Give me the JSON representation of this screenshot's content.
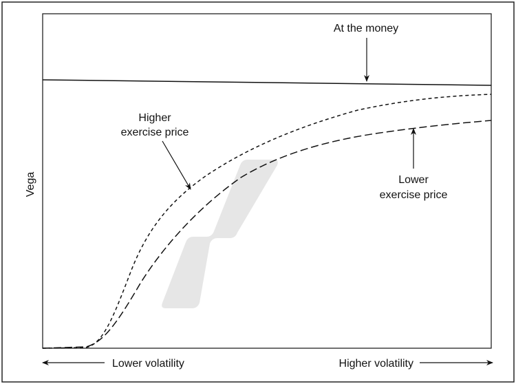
{
  "diagram": {
    "y_axis_label": "Vega",
    "x_axis_left_label": "Lower volatility",
    "x_axis_right_label": "Higher volatility",
    "curves": [
      {
        "label": "At the money",
        "style": "solid"
      },
      {
        "label_line1": "Higher",
        "label_line2": "exercise price",
        "style": "short-dash"
      },
      {
        "label_line1": "Lower",
        "label_line2": "exercise price",
        "style": "long-dash"
      }
    ],
    "colors": {
      "line": "#111111",
      "watermark": "#e6e6e6"
    }
  }
}
